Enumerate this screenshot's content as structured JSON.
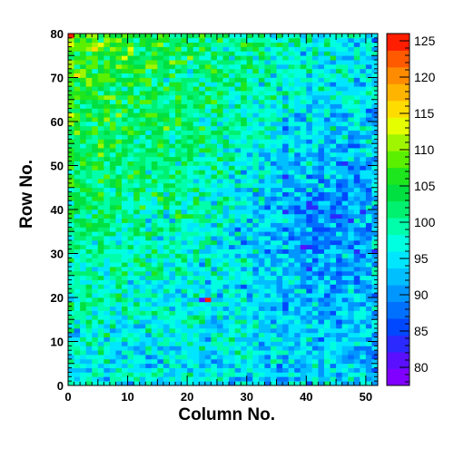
{
  "chart_data": {
    "type": "heatmap",
    "title": "",
    "xlabel": "Column No.",
    "ylabel": "Row No.",
    "xlim": [
      0,
      52
    ],
    "ylim": [
      0,
      80
    ],
    "n_columns": 52,
    "n_rows": 80,
    "x_ticks": [
      "0",
      "10",
      "20",
      "30",
      "40",
      "50"
    ],
    "y_ticks": [
      "0",
      "10",
      "20",
      "30",
      "40",
      "50",
      "60",
      "70",
      "80"
    ],
    "zlim": [
      77.5,
      126
    ],
    "z_ticks": [
      "80",
      "85",
      "90",
      "95",
      "100",
      "105",
      "110",
      "115",
      "120",
      "125"
    ],
    "grid": false,
    "value_trend": {
      "description": "",
      "corner_values": {
        "bottom_left": 96,
        "top_left": 108,
        "bottom_right": 93,
        "top_right": 95
      },
      "low_region_center": [
        40,
        38
      ],
      "low_region_value": 88,
      "noise_amplitude": 4.5
    },
    "hot_spots": [
      {
        "col": 0,
        "row": 79,
        "value": 125
      },
      {
        "col": 23,
        "row": 19,
        "value": 124
      },
      {
        "col": 22,
        "row": 19,
        "value": 80
      }
    ]
  },
  "colorbar": {
    "palette": [
      "#7f00ff",
      "#5a10ff",
      "#2a2aff",
      "#0048ff",
      "#0070ff",
      "#0096ff",
      "#00bfff",
      "#00e6ff",
      "#00ffe0",
      "#00ffaa",
      "#00f070",
      "#00e040",
      "#1ee61e",
      "#5af000",
      "#a0f500",
      "#e6ff00",
      "#ffdc00",
      "#ffb400",
      "#ff8c00",
      "#ff5a00",
      "#ff1e00"
    ]
  }
}
